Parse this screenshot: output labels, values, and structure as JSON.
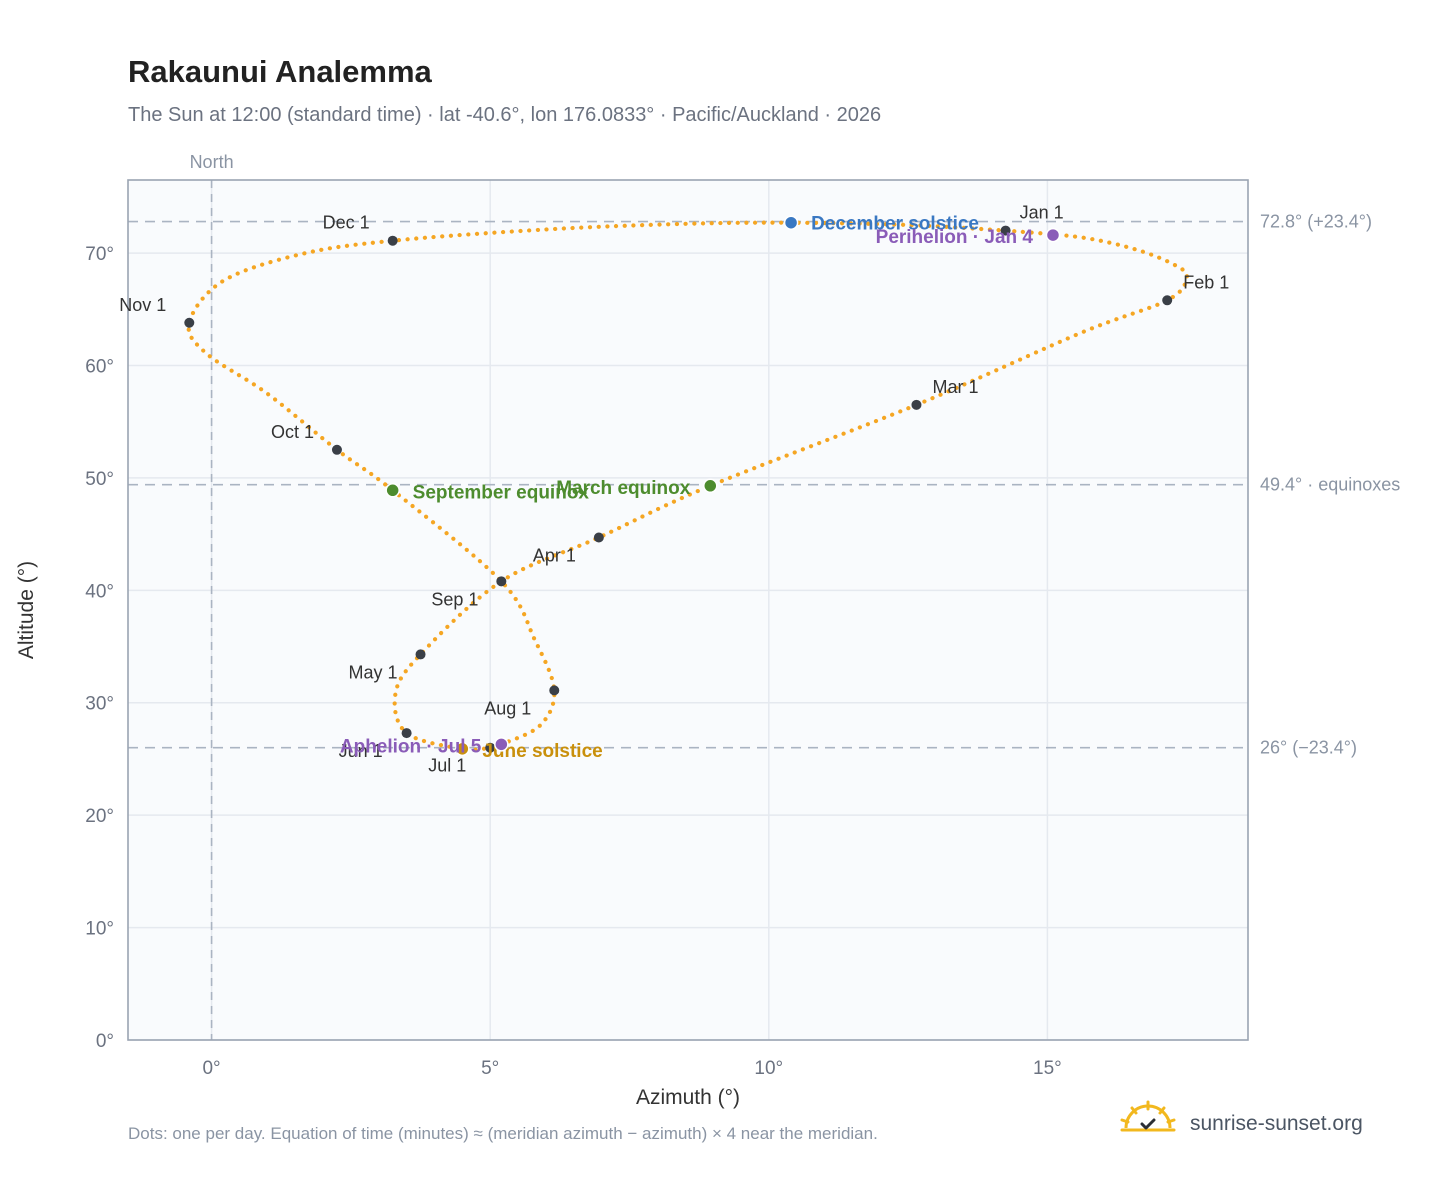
{
  "title": "Rakaunui Analemma",
  "subtitle": "The Sun at 12:00 (standard time) · lat -40.6°, lon 176.0833° · Pacific/Auckland · 2026",
  "footnote": "Dots: one per day. Equation of time (minutes) ≈ (meridian azimuth − azimuth) × 4 near the meridian.",
  "brand": {
    "name": "sunrise-sunset.org",
    "icon": "sun-logo-icon"
  },
  "colors": {
    "curve": "#f5a623",
    "month_dot": "#3a3f47",
    "equinox": "#4d8c2e",
    "december_solstice": "#3a78c2",
    "june_solstice": "#c9900c",
    "apsis": "#8a5cb8",
    "grid": "#e5e9ef",
    "reference": "#aab4c2",
    "plot_bg": "#f9fbfd",
    "plot_border": "#9aa4b2"
  },
  "chart_data": {
    "type": "scatter",
    "title": "Rakaunui Analemma",
    "xlabel": "Azimuth (°)",
    "ylabel": "Altitude (°)",
    "xlim": [
      -1.5,
      18.6
    ],
    "ylim": [
      0,
      76.5
    ],
    "x_ticks": [
      {
        "value": 0,
        "label": "0°"
      },
      {
        "value": 5,
        "label": "5°"
      },
      {
        "value": 10,
        "label": "10°"
      },
      {
        "value": 15,
        "label": "15°"
      }
    ],
    "y_ticks": [
      {
        "value": 0,
        "label": "0°"
      },
      {
        "value": 10,
        "label": "10°"
      },
      {
        "value": 20,
        "label": "20°"
      },
      {
        "value": 30,
        "label": "30°"
      },
      {
        "value": 40,
        "label": "40°"
      },
      {
        "value": 50,
        "label": "50°"
      },
      {
        "value": 60,
        "label": "60°"
      },
      {
        "value": 70,
        "label": "70°"
      }
    ],
    "grid": true,
    "north_line": {
      "x": 0,
      "label": "North"
    },
    "reference_lines": [
      {
        "y": 72.8,
        "label": "72.8° (+23.4°)"
      },
      {
        "y": 49.4,
        "label": "49.4° · equinoxes"
      },
      {
        "y": 26.0,
        "label": "26° (−23.4°)"
      }
    ],
    "month_points": [
      {
        "label": "Jan 1",
        "x": 14.25,
        "y": 72.0
      },
      {
        "label": "Feb 1",
        "x": 17.15,
        "y": 65.8
      },
      {
        "label": "Mar 1",
        "x": 12.65,
        "y": 56.5
      },
      {
        "label": "Apr 1",
        "x": 6.95,
        "y": 44.7
      },
      {
        "label": "May 1",
        "x": 3.75,
        "y": 34.3
      },
      {
        "label": "Jun 1",
        "x": 3.5,
        "y": 27.3
      },
      {
        "label": "Jul 1",
        "x": 5.0,
        "y": 26.0
      },
      {
        "label": "Aug 1",
        "x": 6.15,
        "y": 31.1
      },
      {
        "label": "Sep 1",
        "x": 5.2,
        "y": 40.8
      },
      {
        "label": "Oct 1",
        "x": 2.25,
        "y": 52.5
      },
      {
        "label": "Nov 1",
        "x": -0.4,
        "y": 63.8
      },
      {
        "label": "Dec 1",
        "x": 3.25,
        "y": 71.1
      }
    ],
    "events": [
      {
        "label": "December solstice",
        "x": 10.4,
        "y": 72.7,
        "color": "#3a78c2"
      },
      {
        "label": "Perihelion · Jan 4",
        "x": 15.1,
        "y": 71.6,
        "color": "#8a5cb8"
      },
      {
        "label": "March equinox",
        "x": 8.95,
        "y": 49.3,
        "color": "#4d8c2e"
      },
      {
        "label": "September equinox",
        "x": 3.25,
        "y": 48.9,
        "color": "#4d8c2e"
      },
      {
        "label": "June solstice",
        "x": 4.5,
        "y": 25.9,
        "color": "#c9900c"
      },
      {
        "label": "Aphelion · Jul 5",
        "x": 5.2,
        "y": 26.3,
        "color": "#8a5cb8"
      }
    ],
    "daily_path": [
      [
        14.25,
        72.0
      ],
      [
        15.6,
        71.4
      ],
      [
        16.6,
        70.3
      ],
      [
        17.3,
        68.9
      ],
      [
        17.5,
        67.8
      ],
      [
        17.15,
        65.8
      ],
      [
        15.6,
        62.9
      ],
      [
        12.65,
        56.5
      ],
      [
        8.95,
        49.3
      ],
      [
        6.95,
        44.7
      ],
      [
        5.2,
        40.8
      ],
      [
        3.75,
        34.3
      ],
      [
        3.3,
        30.8
      ],
      [
        3.5,
        27.3
      ],
      [
        4.5,
        25.9
      ],
      [
        5.0,
        26.0
      ],
      [
        5.2,
        26.3
      ],
      [
        5.9,
        28.0
      ],
      [
        6.15,
        31.1
      ],
      [
        5.8,
        35.6
      ],
      [
        5.2,
        40.8
      ],
      [
        3.25,
        48.9
      ],
      [
        2.25,
        52.5
      ],
      [
        1.0,
        57.5
      ],
      [
        -0.1,
        61.1
      ],
      [
        -0.4,
        63.8
      ],
      [
        0.2,
        67.5
      ],
      [
        1.6,
        69.9
      ],
      [
        3.25,
        71.1
      ],
      [
        6.0,
        72.1
      ],
      [
        8.5,
        72.6
      ],
      [
        10.4,
        72.7
      ],
      [
        12.5,
        72.5
      ],
      [
        14.25,
        72.0
      ]
    ]
  }
}
